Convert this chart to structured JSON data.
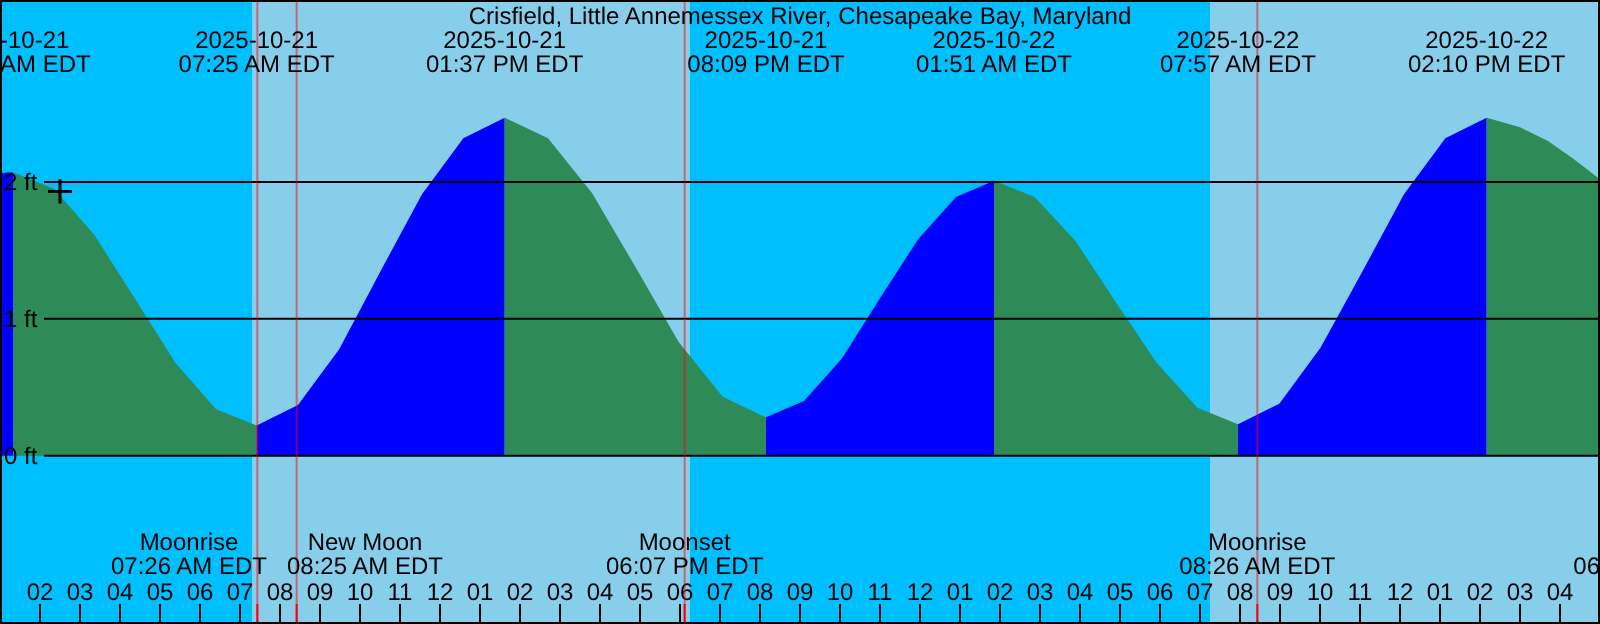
{
  "chart_data": {
    "type": "area",
    "title": "Crisfield, Little Annemessex River, Chesapeake Bay, Maryland",
    "xlim": [
      "2025-10-21T01:00",
      "2025-10-22T17:00"
    ],
    "ylim": [
      -1.23,
      3.33
    ],
    "xticks": [
      {
        "value": "2025-10-21T01:00",
        "label": null
      },
      {
        "value": "2025-10-21T02:00",
        "label": "02"
      },
      {
        "value": "2025-10-21T03:00",
        "label": "03"
      },
      {
        "value": "2025-10-21T04:00",
        "label": "04"
      },
      {
        "value": "2025-10-21T05:00",
        "label": "05"
      },
      {
        "value": "2025-10-21T06:00",
        "label": "06"
      },
      {
        "value": "2025-10-21T07:00",
        "label": "07"
      },
      {
        "value": "2025-10-21T08:00",
        "label": "08"
      },
      {
        "value": "2025-10-21T09:00",
        "label": "09"
      },
      {
        "value": "2025-10-21T10:00",
        "label": "10"
      },
      {
        "value": "2025-10-21T11:00",
        "label": "11"
      },
      {
        "value": "2025-10-21T12:00",
        "label": "12"
      },
      {
        "value": "2025-10-21T13:00",
        "label": "01"
      },
      {
        "value": "2025-10-21T14:00",
        "label": "02"
      },
      {
        "value": "2025-10-21T15:00",
        "label": "03"
      },
      {
        "value": "2025-10-21T16:00",
        "label": "04"
      },
      {
        "value": "2025-10-21T17:00",
        "label": "05"
      },
      {
        "value": "2025-10-21T18:00",
        "label": "06"
      },
      {
        "value": "2025-10-21T19:00",
        "label": "07"
      },
      {
        "value": "2025-10-21T20:00",
        "label": "08"
      },
      {
        "value": "2025-10-21T21:00",
        "label": "09"
      },
      {
        "value": "2025-10-21T22:00",
        "label": "10"
      },
      {
        "value": "2025-10-21T23:00",
        "label": "11"
      },
      {
        "value": "2025-10-22T00:00",
        "label": "12"
      },
      {
        "value": "2025-10-22T01:00",
        "label": "01"
      },
      {
        "value": "2025-10-22T02:00",
        "label": "02"
      },
      {
        "value": "2025-10-22T03:00",
        "label": "03"
      },
      {
        "value": "2025-10-22T04:00",
        "label": "04"
      },
      {
        "value": "2025-10-22T05:00",
        "label": "05"
      },
      {
        "value": "2025-10-22T06:00",
        "label": "06"
      },
      {
        "value": "2025-10-22T07:00",
        "label": "07"
      },
      {
        "value": "2025-10-22T08:00",
        "label": "08"
      },
      {
        "value": "2025-10-22T09:00",
        "label": "09"
      },
      {
        "value": "2025-10-22T10:00",
        "label": "10"
      },
      {
        "value": "2025-10-22T11:00",
        "label": "11"
      },
      {
        "value": "2025-10-22T12:00",
        "label": "12"
      },
      {
        "value": "2025-10-22T13:00",
        "label": "01"
      },
      {
        "value": "2025-10-22T14:00",
        "label": "02"
      },
      {
        "value": "2025-10-22T15:00",
        "label": "03"
      },
      {
        "value": "2025-10-22T16:00",
        "label": "04"
      },
      {
        "value": "2025-10-22T17:00",
        "label": null
      }
    ],
    "yticks": [
      {
        "value": 0,
        "label": "0 ft"
      },
      {
        "value": 1,
        "label": "1 ft"
      },
      {
        "value": 2,
        "label": "2 ft"
      }
    ],
    "grid": "y",
    "bands": [
      {
        "axis": "x",
        "from": "2025-10-21T01:00",
        "to": "2025-10-21T07:18",
        "color": "#00bfff"
      },
      {
        "axis": "x",
        "from": "2025-10-21T07:18",
        "to": "2025-10-21T18:15",
        "color": "#87ceeb"
      },
      {
        "axis": "x",
        "from": "2025-10-21T18:15",
        "to": "2025-10-22T07:15",
        "color": "#00bfff"
      },
      {
        "axis": "x",
        "from": "2025-10-22T07:15",
        "to": "2025-10-22T17:00",
        "color": "#87ceeb"
      }
    ],
    "series": [
      {
        "color": "#0000ff",
        "x": [
          "2025-10-21T01:00",
          "2025-10-21T01:10",
          "2025-10-21T01:20"
        ],
        "values": [
          2.06,
          2.07,
          2.07
        ]
      },
      {
        "color": "#2e8b57",
        "x": [
          "2025-10-21T01:20",
          "2025-10-21T02:21",
          "2025-10-21T03:22",
          "2025-10-21T04:22",
          "2025-10-21T05:23",
          "2025-10-21T06:24",
          "2025-10-21T07:25"
        ],
        "values": [
          2.07,
          1.95,
          1.61,
          1.15,
          0.68,
          0.34,
          0.22
        ]
      },
      {
        "color": "#0000ff",
        "x": [
          "2025-10-21T07:25",
          "2025-10-21T08:27",
          "2025-10-21T09:29",
          "2025-10-21T10:31",
          "2025-10-21T11:33",
          "2025-10-21T12:35",
          "2025-10-21T13:37"
        ],
        "values": [
          0.22,
          0.37,
          0.78,
          1.35,
          1.91,
          2.32,
          2.47
        ]
      },
      {
        "color": "#2e8b57",
        "x": [
          "2025-10-21T13:37",
          "2025-10-21T14:42",
          "2025-10-21T15:48",
          "2025-10-21T16:53",
          "2025-10-21T17:58",
          "2025-10-21T19:04",
          "2025-10-21T20:09"
        ],
        "values": [
          2.47,
          2.32,
          1.92,
          1.38,
          0.83,
          0.43,
          0.28
        ]
      },
      {
        "color": "#0000ff",
        "x": [
          "2025-10-21T20:09",
          "2025-10-21T21:06",
          "2025-10-21T22:03",
          "2025-10-21T23:00",
          "2025-10-21T23:57",
          "2025-10-22T00:54",
          "2025-10-22T01:51"
        ],
        "values": [
          0.28,
          0.4,
          0.71,
          1.15,
          1.58,
          1.89,
          2.01
        ]
      },
      {
        "color": "#2e8b57",
        "x": [
          "2025-10-22T01:51",
          "2025-10-22T02:52",
          "2025-10-22T03:53",
          "2025-10-22T04:54",
          "2025-10-22T05:55",
          "2025-10-22T06:56",
          "2025-10-22T07:57"
        ],
        "values": [
          2.01,
          1.89,
          1.57,
          1.12,
          0.68,
          0.35,
          0.23
        ]
      },
      {
        "color": "#0000ff",
        "x": [
          "2025-10-22T07:57",
          "2025-10-22T08:59",
          "2025-10-22T10:01",
          "2025-10-22T11:04",
          "2025-10-22T12:06",
          "2025-10-22T13:08",
          "2025-10-22T14:10"
        ],
        "values": [
          0.23,
          0.38,
          0.79,
          1.35,
          1.91,
          2.32,
          2.47
        ]
      },
      {
        "color": "#2e8b57",
        "x": [
          "2025-10-22T14:10",
          "2025-10-22T15:00",
          "2025-10-22T15:42",
          "2025-10-22T16:20",
          "2025-10-22T17:00"
        ],
        "values": [
          2.47,
          2.4,
          2.3,
          2.17,
          2.02
        ]
      },
      {
        "type": "scatter",
        "marker": "cross",
        "color": "#000000",
        "x": [
          "2025-10-21T02:30"
        ],
        "values": [
          1.93
        ]
      }
    ],
    "ref_lines": [
      {
        "axis": "x",
        "value": "2025-10-21T07:26",
        "label": "Moonrise\n07:26 AM EDT",
        "color": "#ff0000"
      },
      {
        "axis": "x",
        "value": "2025-10-21T08:25",
        "label": "New Moon\n08:25 AM EDT",
        "color": "#ff0000"
      },
      {
        "axis": "x",
        "value": "2025-10-21T18:07",
        "label": "Moonset\n06:07 PM EDT",
        "color": "#ff0000"
      },
      {
        "axis": "x",
        "value": "2025-10-22T08:26",
        "label": "Moonrise\n08:26 AM EDT",
        "color": "#ff0000"
      }
    ],
    "annotations": [
      "-10-21\nAM EDT",
      "2025-10-21\n07:25 AM EDT",
      "2025-10-21\n01:37 PM EDT",
      "2025-10-21\n08:09 PM EDT",
      "2025-10-22\n01:51 AM EDT",
      "2025-10-22\n07:57 AM EDT",
      "2025-10-22\n02:10 PM EDT",
      "06"
    ]
  }
}
